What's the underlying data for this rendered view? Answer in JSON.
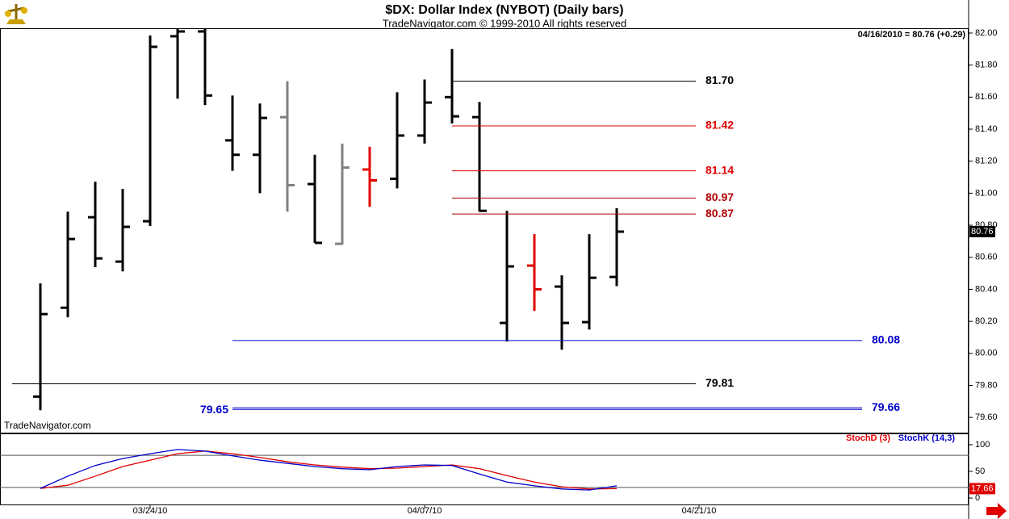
{
  "chart_data": [
    {
      "type": "ohlc",
      "title": "$DX:  Dollar Index (NYBOT)  (Daily bars)",
      "subtitle": "TradeNavigator.com © 1999-2010 All rights reserved",
      "annotation": "04/16/2010 = 80.76 (+0.29)",
      "source": "TradeNavigator.com",
      "categories": [
        null,
        null,
        null,
        null,
        "03/24/10",
        null,
        null,
        null,
        null,
        null,
        null,
        null,
        null,
        null,
        "04/07/10",
        null,
        null,
        null,
        null,
        null,
        null,
        null,
        null,
        null,
        "04/21/10"
      ],
      "open": [
        79.73,
        80.285,
        80.85,
        80.573,
        80.825,
        81.98,
        82.01,
        81.33,
        81.24,
        81.475,
        81.057,
        80.684,
        81.148,
        81.09,
        81.36,
        81.6,
        81.475,
        80.19,
        80.548,
        80.417,
        80.195,
        80.477,
        null,
        null,
        null
      ],
      "high": [
        80.437,
        80.885,
        81.072,
        81.027,
        81.985,
        82.04,
        82.04,
        81.61,
        81.56,
        81.7,
        81.24,
        81.31,
        81.29,
        81.63,
        81.71,
        81.9,
        81.57,
        80.89,
        80.744,
        80.487,
        80.744,
        80.906,
        null,
        null,
        null
      ],
      "low": [
        79.645,
        80.225,
        80.538,
        80.512,
        80.795,
        81.59,
        81.55,
        81.14,
        81.0,
        80.885,
        80.69,
        80.68,
        80.915,
        81.03,
        81.31,
        81.435,
        80.885,
        80.074,
        80.265,
        80.023,
        80.149,
        80.42,
        null,
        null,
        null
      ],
      "close": [
        80.245,
        80.714,
        80.593,
        80.79,
        81.914,
        82.01,
        81.61,
        81.24,
        81.47,
        81.05,
        80.69,
        81.16,
        81.08,
        81.36,
        81.566,
        81.48,
        80.89,
        80.543,
        80.4,
        80.19,
        80.472,
        80.76,
        null,
        null,
        null
      ],
      "colors": [
        "#000000",
        "#000000",
        "#000000",
        "#000000",
        "#000000",
        "#000000",
        "#000000",
        "#000000",
        "#000000",
        "#808080",
        "#000000",
        "#808080",
        "#e00000",
        "#000000",
        "#000000",
        "#000000",
        "#000000",
        "#000000",
        "#e00000",
        "#000000",
        "#000000",
        "#000000",
        null,
        null,
        null
      ],
      "levels": [
        {
          "value": 81.7,
          "label": "81.70",
          "color": "#000000"
        },
        {
          "value": 81.42,
          "label": "81.42",
          "color": "#e00000"
        },
        {
          "value": 81.14,
          "label": "81.14",
          "color": "#e00000"
        },
        {
          "value": 80.97,
          "label": "80.97",
          "color": "#b00000"
        },
        {
          "value": 80.87,
          "label": "80.87",
          "color": "#b00000"
        },
        {
          "value": 80.08,
          "label": "80.08",
          "color": "#0000cc"
        },
        {
          "value": 79.81,
          "label": "79.81",
          "color": "#000000"
        },
        {
          "value": 79.65,
          "label": "79.65",
          "color": "#0000cc"
        },
        {
          "value": 79.66,
          "label": "79.66",
          "color": "#0000cc"
        }
      ],
      "ylim": [
        79.5,
        82.03
      ],
      "yticks": [
        {
          "value": 79.6,
          "label": "79.60"
        },
        {
          "value": 79.8,
          "label": "79.80"
        },
        {
          "value": 80.0,
          "label": "80.00"
        },
        {
          "value": 80.2,
          "label": "80.20"
        },
        {
          "value": 80.4,
          "label": "80.40"
        },
        {
          "value": 80.6,
          "label": "80.60"
        },
        {
          "value": 80.8,
          "label": "80.80"
        },
        {
          "value": 81.0,
          "label": "81.00"
        },
        {
          "value": 81.2,
          "label": "81.20"
        },
        {
          "value": 81.4,
          "label": "81.40"
        },
        {
          "value": 81.6,
          "label": "81.60"
        },
        {
          "value": 81.8,
          "label": "81.80"
        },
        {
          "value": 82.0,
          "label": "82.00"
        }
      ]
    },
    {
      "type": "line",
      "series": [
        {
          "name": "StochD (3)",
          "color": "#e00000",
          "values": [
            18,
            24,
            41,
            59,
            71,
            83,
            88,
            83,
            76,
            68,
            62,
            58,
            55,
            56,
            59,
            62,
            55,
            42,
            30,
            21,
            17,
            17.66,
            null,
            null,
            null
          ]
        },
        {
          "name": "StochK (14,3)",
          "color": "#0000cc",
          "values": [
            18,
            41,
            61,
            74,
            83,
            91,
            88,
            79,
            71,
            65,
            59,
            55,
            53,
            59,
            62,
            61,
            45,
            30,
            23,
            17,
            15,
            23,
            null,
            null,
            null
          ]
        }
      ],
      "ylim": [
        -12,
        121
      ],
      "yticks": [
        0,
        50,
        100
      ],
      "levels": [
        20,
        80
      ]
    }
  ]
}
